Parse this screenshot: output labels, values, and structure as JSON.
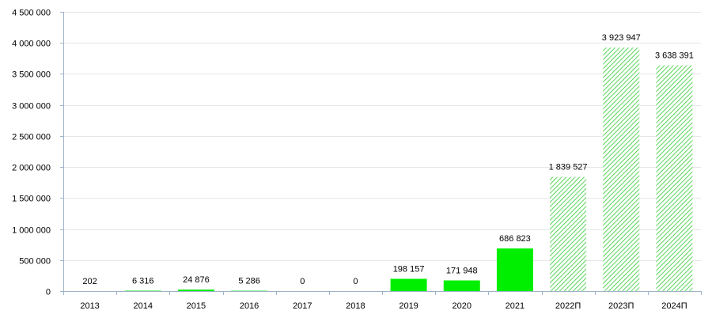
{
  "chart_data": {
    "type": "bar",
    "title": "",
    "xlabel": "",
    "ylabel": "",
    "categories": [
      "2013",
      "2014",
      "2015",
      "2016",
      "2017",
      "2018",
      "2019",
      "2020",
      "2021",
      "2022П",
      "2023П",
      "2024П"
    ],
    "values": [
      202,
      6316,
      24876,
      5286,
      0,
      0,
      198157,
      171948,
      686823,
      1839527,
      3923947,
      3638391
    ],
    "value_labels": [
      "202",
      "6 316",
      "24 876",
      "5 286",
      "0",
      "0",
      "198 157",
      "171 948",
      "686 823",
      "1 839 527",
      "3 923 947",
      "3 638 391"
    ],
    "forecast": [
      false,
      false,
      false,
      false,
      false,
      false,
      false,
      false,
      false,
      true,
      true,
      true
    ],
    "ylim": [
      0,
      4500000
    ],
    "yticks": [
      0,
      500000,
      1000000,
      1500000,
      2000000,
      2500000,
      3000000,
      3500000,
      4000000,
      4500000
    ],
    "ytick_labels": [
      "0",
      "500 000",
      "1 000 000",
      "1 500 000",
      "2 000 000",
      "2 500 000",
      "3 000 000",
      "3 500 000",
      "4 000 000",
      "4 500 000"
    ],
    "grid": true,
    "legend": "none",
    "colors": {
      "actual": "#00ee00",
      "forecast_hatch": "#2ecc2e",
      "axis": "#9fb3c8",
      "grid": "#e6e6e6"
    }
  }
}
